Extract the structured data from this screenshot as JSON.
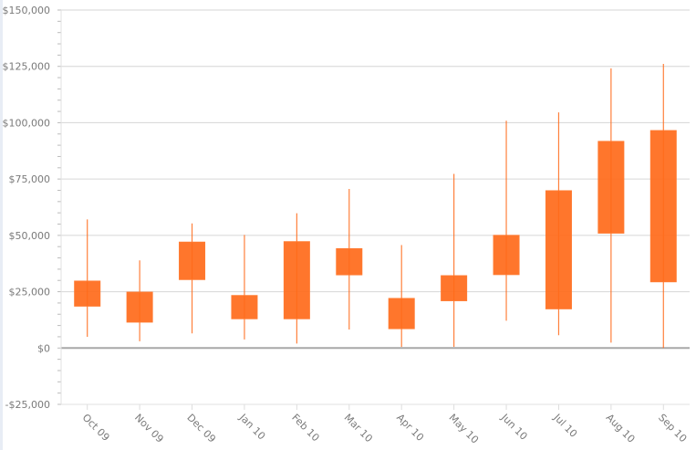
{
  "chart_data": {
    "type": "candlestick",
    "title": "",
    "xlabel": "",
    "ylabel": "",
    "ylim": [
      -25000,
      150000
    ],
    "y_ticks": [
      -25000,
      0,
      25000,
      50000,
      75000,
      100000,
      125000,
      150000
    ],
    "y_tick_labels": [
      "-$25,000",
      "$0",
      "$25,000",
      "$50,000",
      "$75,000",
      "$100,000",
      "$125,000",
      "$150,000"
    ],
    "grid": true,
    "color": "#ff6a1a",
    "categories": [
      "Oct 09",
      "Nov 09",
      "Dec 09",
      "Jan 10",
      "Feb 10",
      "Mar 10",
      "Apr 10",
      "May 10",
      "Jun 10",
      "Jul 10",
      "Aug 10",
      "Sep 10"
    ],
    "series": [
      {
        "low": [
          5000,
          3000,
          6500,
          3800,
          2000,
          8200,
          500,
          500,
          12100,
          5700,
          2400,
          0
        ],
        "box_low": [
          18600,
          11500,
          30400,
          13000,
          13000,
          32500,
          8600,
          21000,
          32600,
          17400,
          51000,
          29400
        ],
        "box_high": [
          29700,
          24800,
          47000,
          23300,
          47200,
          44100,
          22000,
          32100,
          50000,
          69800,
          91700,
          96500
        ],
        "high": [
          57100,
          38900,
          55300,
          50200,
          59800,
          70600,
          45700,
          77300,
          100900,
          104600,
          124100,
          126100
        ]
      }
    ]
  }
}
